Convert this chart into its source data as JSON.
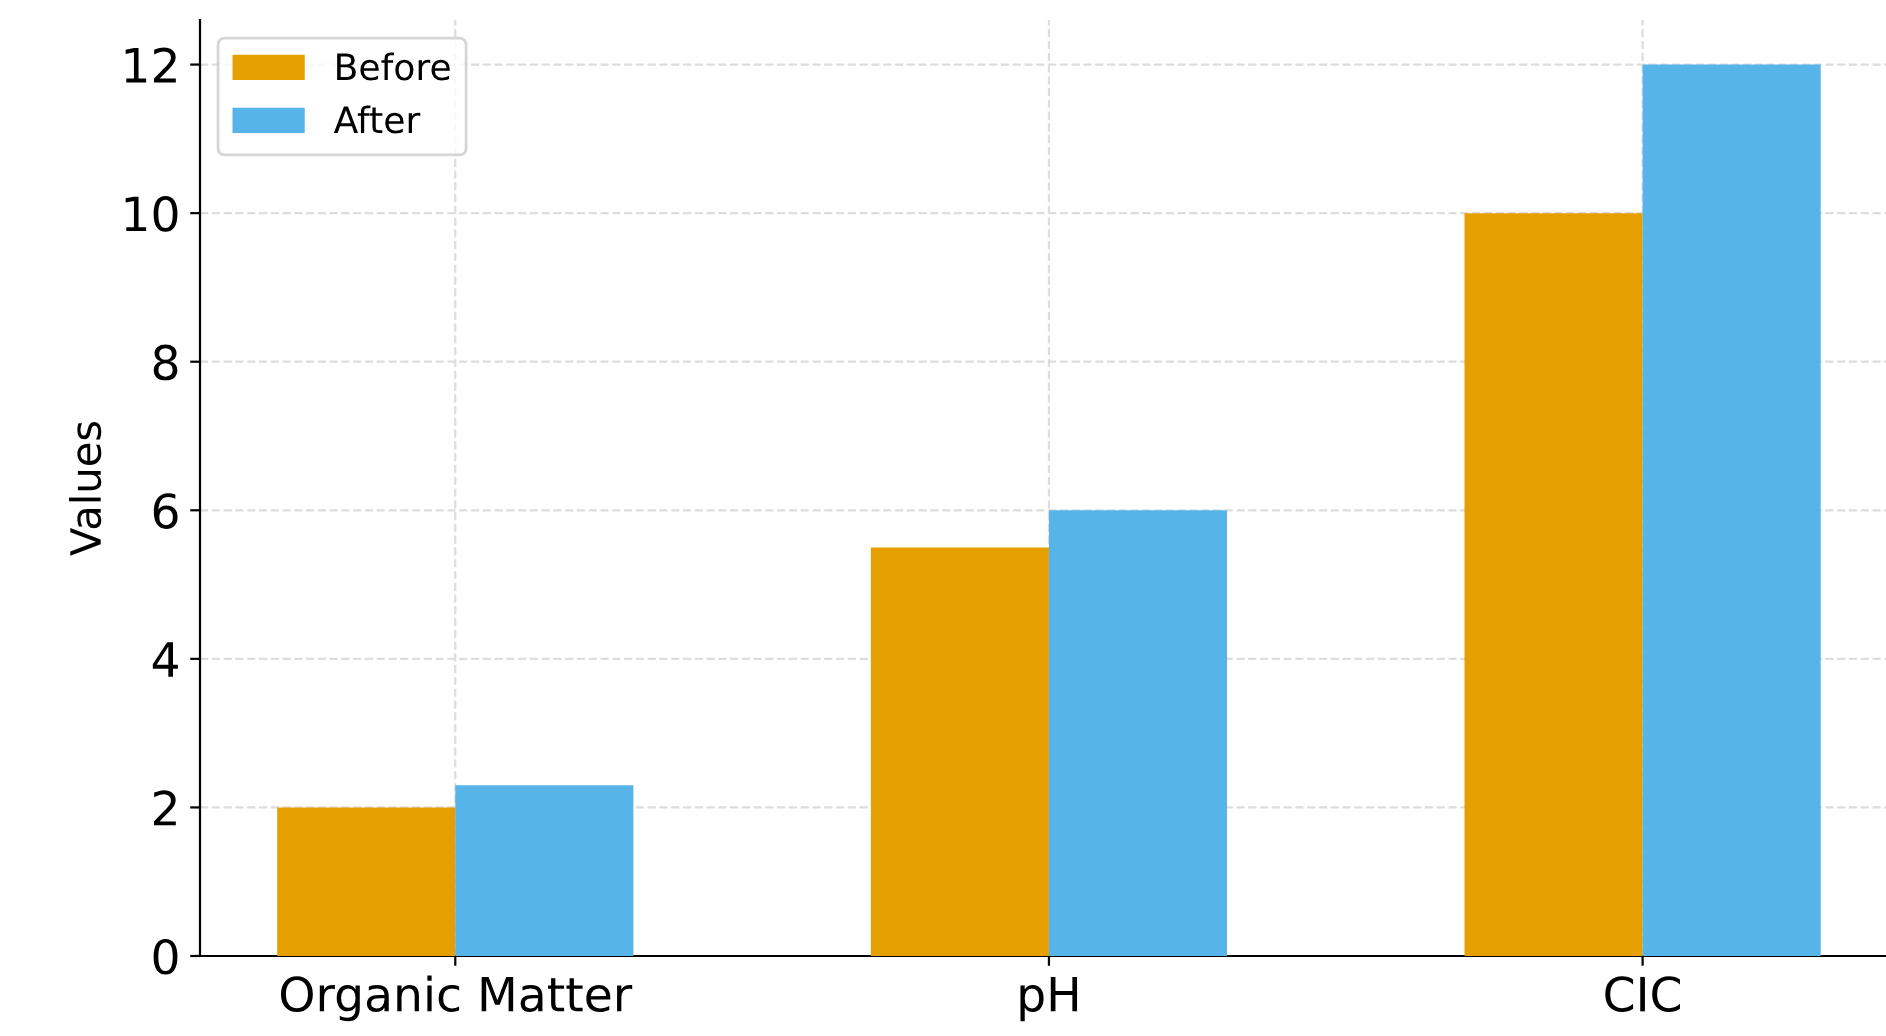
{
  "chart_data": {
    "type": "bar",
    "ylabel": "Values",
    "categories": [
      "Organic Matter",
      "pH",
      "CIC"
    ],
    "series": [
      {
        "name": "Before",
        "color": "#e69f00",
        "values": [
          2,
          5.5,
          10
        ]
      },
      {
        "name": "After",
        "color": "#56b4e9",
        "values": [
          2.3,
          6,
          12
        ]
      }
    ],
    "ylim": [
      0,
      12.6
    ],
    "yticks": [
      0,
      2,
      4,
      6,
      8,
      10,
      12
    ],
    "grid": true,
    "legend": "top left"
  }
}
